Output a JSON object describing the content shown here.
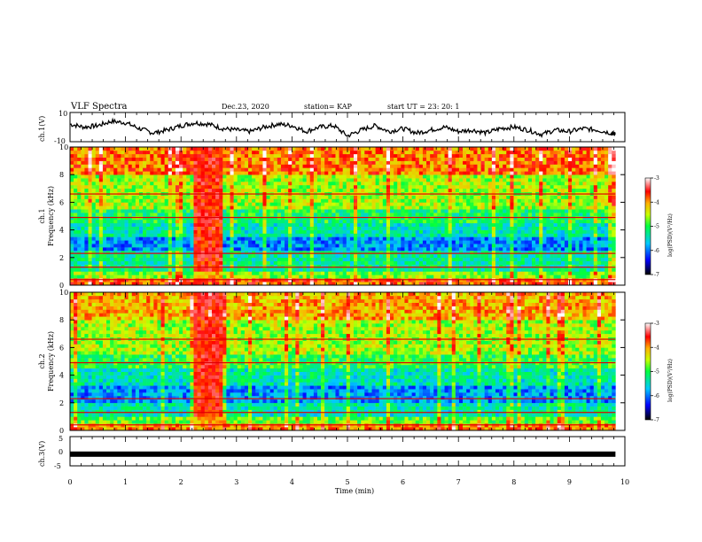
{
  "header": {
    "title": "VLF Spectra",
    "date": "Dec.23, 2020",
    "station": "station= KAP",
    "start": "start  UT  =   23: 20: 1"
  },
  "chart_data": [
    {
      "type": "line",
      "panel": "ch1-waveform",
      "ylabel": "ch.1(V)",
      "ylim": [
        -10,
        10
      ],
      "yticks": [
        "10",
        "-10"
      ],
      "xlim": [
        0,
        10
      ],
      "series": [
        {
          "color": "#000000",
          "x": [
            0.0,
            0.25,
            0.5,
            0.75,
            1.0,
            1.25,
            1.5,
            1.75,
            2.0,
            2.25,
            2.5,
            2.75,
            3.0,
            3.25,
            3.5,
            3.75,
            4.0,
            4.25,
            4.5,
            4.75,
            5.0,
            5.25,
            5.5,
            5.75,
            6.0,
            6.25,
            6.5,
            6.75,
            7.0,
            7.25,
            7.5,
            7.75,
            8.0,
            8.25,
            8.5,
            8.75,
            9.0,
            9.25,
            9.5,
            9.75,
            9.83
          ],
          "values": [
            2,
            0,
            1,
            4,
            3,
            -1,
            -4,
            -2,
            1,
            3,
            2,
            -1,
            -2,
            -3,
            0,
            2,
            1,
            -3,
            0,
            1,
            -6,
            -2,
            1,
            -3,
            -1,
            -4,
            -2,
            0,
            -3,
            -2,
            -4,
            -1,
            0,
            -2,
            -5,
            -2,
            -3,
            -1,
            -2,
            -4,
            -5
          ]
        }
      ]
    },
    {
      "type": "heatmap",
      "panel": "ch1-spectrogram",
      "ylabel": "ch.1\nFrequency (kHz)",
      "ylim": [
        0,
        10
      ],
      "yticks": [
        "0",
        "2",
        "4",
        "6",
        "8",
        "10"
      ],
      "xlim": [
        0,
        10
      ],
      "data_extent_x": [
        0,
        9.83
      ],
      "colorbar": {
        "label": "log(PSD)(V²/Hz)",
        "range": [
          -7,
          -3
        ],
        "ticks": [
          "-3",
          "-4",
          "-5",
          "-6",
          "-7"
        ]
      },
      "bands": [
        {
          "from": 0.0,
          "to": 0.5,
          "level": -3.8
        },
        {
          "from": 0.5,
          "to": 1.0,
          "level": -4.7
        },
        {
          "from": 1.0,
          "to": 2.6,
          "level": -5.3
        },
        {
          "from": 2.6,
          "to": 3.5,
          "level": -5.9
        },
        {
          "from": 3.5,
          "to": 4.6,
          "level": -5.4
        },
        {
          "from": 4.6,
          "to": 5.4,
          "level": -5.1
        },
        {
          "from": 5.4,
          "to": 8.0,
          "level": -4.6
        },
        {
          "from": 8.0,
          "to": 10.0,
          "level": -3.9
        }
      ],
      "burst": {
        "from": 2.25,
        "to": 2.75,
        "level": -3.6
      }
    },
    {
      "type": "heatmap",
      "panel": "ch2-spectrogram",
      "ylabel": "ch.2\nFrequency (kHz)",
      "ylim": [
        0,
        10
      ],
      "yticks": [
        "0",
        "2",
        "4",
        "6",
        "8",
        "10"
      ],
      "xlim": [
        0,
        10
      ],
      "data_extent_x": [
        0,
        9.83
      ],
      "colorbar": {
        "label": "log(PSD)(V²/Hz)",
        "range": [
          -7,
          -3
        ],
        "ticks": [
          "-3",
          "-4",
          "-5",
          "-6",
          "-7"
        ]
      },
      "bands": [
        {
          "from": 0.0,
          "to": 0.5,
          "level": -4.0
        },
        {
          "from": 0.5,
          "to": 1.0,
          "level": -4.8
        },
        {
          "from": 1.0,
          "to": 2.0,
          "level": -5.4
        },
        {
          "from": 2.0,
          "to": 3.3,
          "level": -5.9
        },
        {
          "from": 3.3,
          "to": 4.5,
          "level": -5.4
        },
        {
          "from": 4.5,
          "to": 5.5,
          "level": -5.0
        },
        {
          "from": 5.5,
          "to": 8.0,
          "level": -4.6
        },
        {
          "from": 8.0,
          "to": 10.0,
          "level": -4.1
        }
      ],
      "burst": {
        "from": 2.25,
        "to": 2.75,
        "level": -3.6
      }
    },
    {
      "type": "line",
      "panel": "ch3-waveform",
      "ylabel": "ch.3(V)",
      "ylim": [
        -5,
        5
      ],
      "yticks": [
        "5",
        "0",
        "-5"
      ],
      "xlim": [
        0,
        10
      ],
      "xlabel": "Time (min)",
      "xticks": [
        "0",
        "1",
        "2",
        "3",
        "4",
        "5",
        "6",
        "7",
        "8",
        "9",
        "10"
      ],
      "series": [
        {
          "color": "#000000",
          "x": [
            0,
            9.83
          ],
          "values": [
            -1,
            -1
          ]
        }
      ]
    }
  ]
}
